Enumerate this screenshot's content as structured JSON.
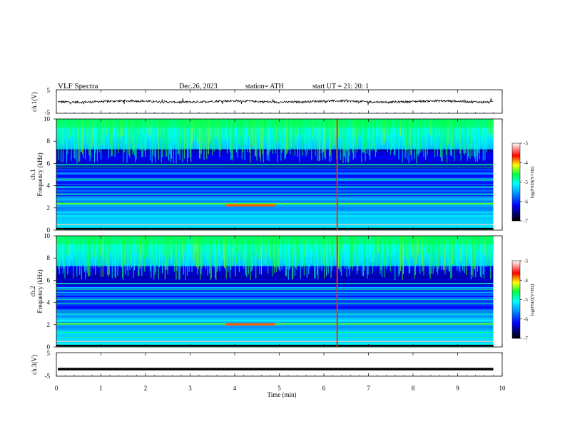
{
  "header": {
    "title": "VLF Spectra",
    "date": "Dec.26, 2023",
    "station": "station= ATH",
    "start_ut": "start UT = 21: 20: 1"
  },
  "colors": {
    "trace": "#000000",
    "colormap": [
      "#000000",
      "#000080",
      "#0000ff",
      "#0080ff",
      "#00ffff",
      "#00ff00",
      "#ffff00",
      "#ff0000",
      "#ffffff"
    ]
  },
  "chart_data": [
    {
      "type": "line",
      "panel": "ch1-waveform",
      "ylabel": "ch.1(V)",
      "ylim": [
        -5,
        5
      ],
      "yticks": [
        "5",
        "-5"
      ],
      "xlim": [
        0,
        10
      ],
      "description_values": {
        "mean": 0,
        "approx_amplitude": 1
      }
    },
    {
      "type": "heatmap",
      "panel": "ch1-spectrogram",
      "ylabel": "ch.1\nFrequency (kHz)",
      "ylim": [
        0,
        10
      ],
      "yticks": [
        "0",
        "2",
        "4",
        "6",
        "8",
        "10"
      ],
      "xlim": [
        0,
        10
      ],
      "data_end_min": 9.8,
      "colorbar": {
        "label": "log(PSD)(V²/Hz)",
        "range": [
          -7,
          -3
        ],
        "ticks": [
          "-3",
          "-4",
          "-5",
          "-6",
          "-7"
        ]
      },
      "features": [
        {
          "kind": "broadband_event",
          "time_min": 6.3
        },
        {
          "kind": "enhanced_band",
          "freq_khz": 2.2,
          "t_start_min": 3.8,
          "t_end_min": 4.9
        }
      ]
    },
    {
      "type": "heatmap",
      "panel": "ch2-spectrogram",
      "ylabel": "ch.2\nFrequency (kHz)",
      "ylim": [
        0,
        10
      ],
      "yticks": [
        "0",
        "2",
        "4",
        "6",
        "8",
        "10"
      ],
      "xlim": [
        0,
        10
      ],
      "data_end_min": 9.8,
      "colorbar": {
        "label": "log(PSD)(V²/Hz)",
        "range": [
          -7,
          -3
        ],
        "ticks": [
          "-3",
          "-4",
          "-5",
          "-6",
          "-7"
        ]
      },
      "features": [
        {
          "kind": "broadband_event",
          "time_min": 6.3
        },
        {
          "kind": "enhanced_band",
          "freq_khz": 2.0,
          "t_start_min": 3.8,
          "t_end_min": 4.9
        }
      ]
    },
    {
      "type": "line",
      "panel": "ch3-waveform",
      "ylabel": "ch.3(V)",
      "ylim": [
        -5,
        5
      ],
      "yticks": [
        "5",
        "-5"
      ],
      "xlim": [
        0,
        10
      ],
      "values_const": -2
    }
  ],
  "xaxis": {
    "label": "Time (min)",
    "ticks": [
      "0",
      "1",
      "2",
      "3",
      "4",
      "5",
      "6",
      "7",
      "8",
      "9",
      "10"
    ]
  }
}
